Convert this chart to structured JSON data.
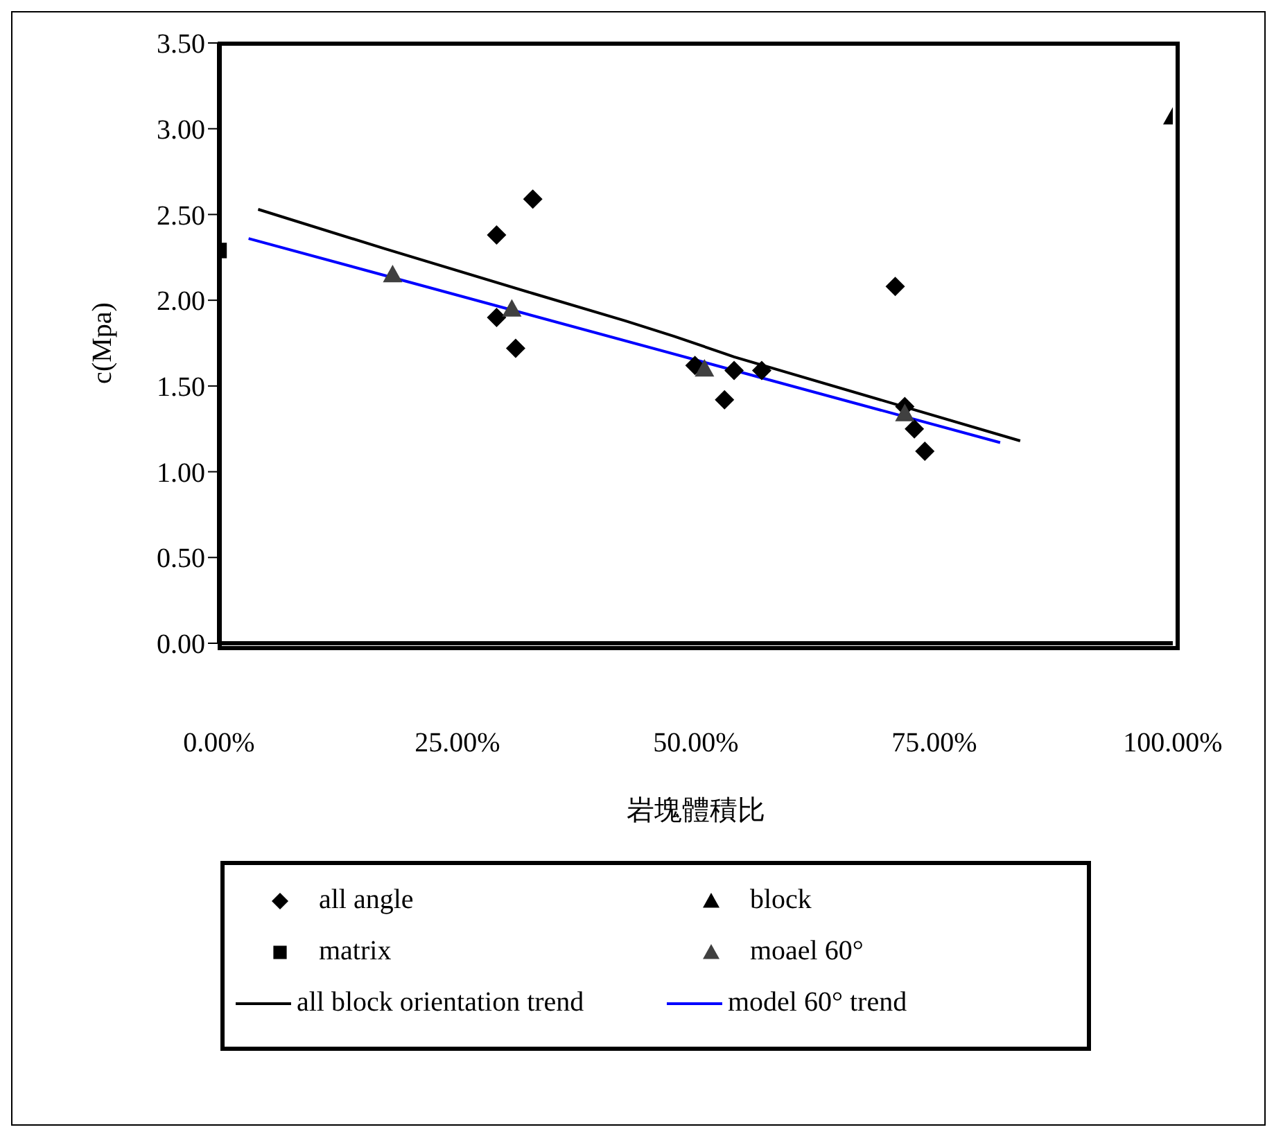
{
  "chart_data": {
    "type": "scatter",
    "xlabel": "岩塊體積比",
    "ylabel": "c(Mpa)",
    "xlim": [
      0,
      100
    ],
    "xticks": [
      {
        "value": 0,
        "label": "0.00%"
      },
      {
        "value": 25,
        "label": "25.00%"
      },
      {
        "value": 50,
        "label": "50.00%"
      },
      {
        "value": 75,
        "label": "75.00%"
      },
      {
        "value": 100,
        "label": "100.00%"
      }
    ],
    "ylim": [
      0,
      3.5
    ],
    "yticks": [
      {
        "value": 0,
        "label": "0.00"
      },
      {
        "value": 0.5,
        "label": "0.50"
      },
      {
        "value": 1,
        "label": "1.00"
      },
      {
        "value": 1.5,
        "label": "1.50"
      },
      {
        "value": 2,
        "label": "2.00"
      },
      {
        "value": 2.5,
        "label": "2.50"
      },
      {
        "value": 3,
        "label": "3.00"
      },
      {
        "value": 3.5,
        "label": "3.50"
      }
    ],
    "grid": false,
    "legend": "bottom",
    "series": [
      {
        "name": "all angle",
        "marker": "diamond",
        "color": "#000000",
        "x": [
          29.1,
          32.9,
          29.1,
          31.1,
          49.9,
          54.0,
          56.9,
          53.0,
          70.9,
          71.9,
          72.9,
          74.0
        ],
        "values": [
          2.38,
          2.59,
          1.9,
          1.72,
          1.62,
          1.59,
          1.59,
          1.42,
          2.08,
          1.38,
          1.25,
          1.12
        ]
      },
      {
        "name": "block",
        "marker": "triangle",
        "color": "#000000",
        "x": [
          100
        ],
        "values": [
          3.07
        ]
      },
      {
        "name": "matrix",
        "marker": "square",
        "color": "#000000",
        "x": [
          0
        ],
        "values": [
          2.29
        ]
      },
      {
        "name": "moael 60°",
        "marker": "triangle",
        "color": "#404040",
        "x": [
          18.2,
          30.7,
          50.9,
          71.9
        ],
        "values": [
          2.15,
          1.95,
          1.6,
          1.34
        ]
      },
      {
        "name": "all block orientation trend",
        "type": "line",
        "marker": "none",
        "color": "#000000",
        "x": [
          4.1,
          17.4,
          32.9,
          42.6,
          47.7,
          54.0,
          84.0
        ],
        "values": [
          2.53,
          2.3,
          2.04,
          1.88,
          1.79,
          1.67,
          1.18
        ]
      },
      {
        "name": "model 60° trend",
        "type": "line",
        "marker": "none",
        "color": "#0000ff",
        "x": [
          3.1,
          81.9
        ],
        "values": [
          2.36,
          1.17
        ]
      }
    ]
  }
}
